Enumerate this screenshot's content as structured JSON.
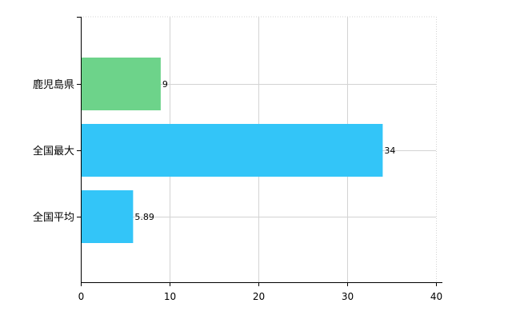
{
  "chart_data": {
    "type": "bar",
    "orientation": "horizontal",
    "categories": [
      "鹿児島県",
      "全国最大",
      "全国平均"
    ],
    "values": [
      9,
      34,
      5.89
    ],
    "data_labels": [
      "9",
      "34",
      "5.89"
    ],
    "colors": [
      "#6dd38a",
      "#33c5f8",
      "#33c5f8"
    ],
    "xlim": [
      0,
      40
    ],
    "xticks": [
      0,
      10,
      20,
      30,
      40
    ],
    "grid": true,
    "legend": "none",
    "title": "",
    "xlabel": "",
    "ylabel": ""
  }
}
